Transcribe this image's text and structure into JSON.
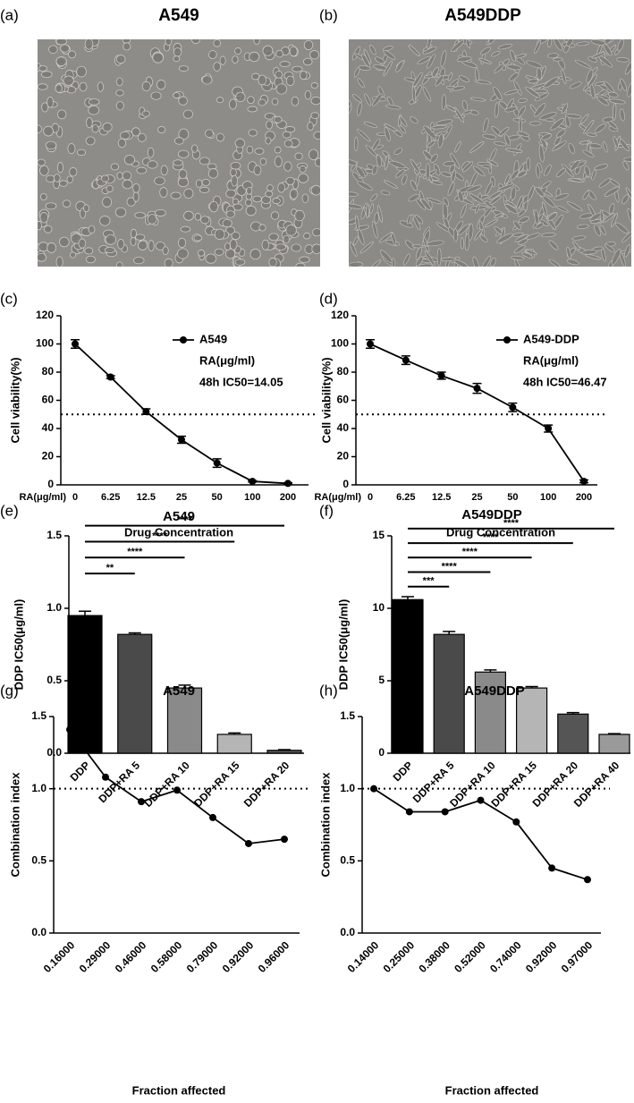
{
  "images": [
    {
      "panel_label": "(a)",
      "title": "A549"
    },
    {
      "panel_label": "(b)",
      "title": "A549DDP"
    }
  ],
  "chart_data": [
    {
      "type": "line",
      "panel_label": "(c)",
      "categories": [
        "0",
        "6.25",
        "12.5",
        "25",
        "50",
        "100",
        "200"
      ],
      "x_prefix_label": "RA(μg/ml)",
      "x_label": "Drug Concentration",
      "y_label": "Cell viability(%)",
      "ylim": [
        0,
        120
      ],
      "yticks": [
        0,
        20,
        40,
        60,
        80,
        100,
        120
      ],
      "reference_line": 50,
      "series": [
        {
          "name": "A549",
          "color": "#000000",
          "values": [
            100,
            76.5,
            52,
            32,
            15.5,
            2.5,
            1
          ],
          "errors": [
            3,
            1,
            2,
            2.5,
            3,
            0.5,
            0.5
          ]
        }
      ],
      "legend_notes": [
        "RA(μg/ml)",
        "48h IC50=14.05"
      ]
    },
    {
      "type": "line",
      "panel_label": "(d)",
      "categories": [
        "0",
        "6.25",
        "12.5",
        "25",
        "50",
        "100",
        "200"
      ],
      "x_prefix_label": "RA(μg/ml)",
      "x_label": "Drug Concentration",
      "y_label": "Cell viability(%)",
      "ylim": [
        0,
        120
      ],
      "yticks": [
        0,
        20,
        40,
        60,
        80,
        100,
        120
      ],
      "reference_line": 50,
      "series": [
        {
          "name": "A549-DDP",
          "color": "#000000",
          "values": [
            100,
            88.5,
            77.5,
            68.5,
            55,
            40,
            2.5
          ],
          "errors": [
            3,
            3,
            2.5,
            3.5,
            3,
            2.5,
            1
          ]
        }
      ],
      "legend_notes": [
        "RA(μg/ml)",
        "48h IC50=46.47"
      ]
    },
    {
      "type": "bar",
      "panel_label": "(e)",
      "title": "A549",
      "categories": [
        "DDP",
        "DDP+RA 5",
        "DDP+RA 10",
        "DDP+RA 15",
        "DDP+RA 20"
      ],
      "values": [
        0.95,
        0.82,
        0.45,
        0.13,
        0.02
      ],
      "errors": [
        0.03,
        0.01,
        0.02,
        0.01,
        0.005
      ],
      "colors": [
        "#000000",
        "#4a4a4a",
        "#8a8a8a",
        "#b5b5b5",
        "#555555"
      ],
      "y_label": "DDP IC50(μg/ml)",
      "ylim": [
        0,
        1.5
      ],
      "yticks": [
        {
          "value": 0,
          "label": "0.0"
        },
        0.5,
        {
          "value": 1,
          "label": "1.0"
        },
        1.5
      ],
      "significance": [
        {
          "from": 0,
          "to": 1,
          "label": "**",
          "y": 1.24
        },
        {
          "from": 0,
          "to": 2,
          "label": "****",
          "y": 1.35
        },
        {
          "from": 0,
          "to": 3,
          "label": "****",
          "y": 1.46
        },
        {
          "from": 0,
          "to": 4,
          "label": "****",
          "y": 1.57
        }
      ]
    },
    {
      "type": "bar",
      "panel_label": "(f)",
      "title": "A549DDP",
      "categories": [
        "DDP",
        "DDP+RA 5",
        "DDP+RA 10",
        "DDP+RA 15",
        "DDP+RA 20",
        "DDP+RA 40"
      ],
      "values": [
        10.6,
        8.2,
        5.6,
        4.5,
        2.7,
        1.3
      ],
      "errors": [
        0.2,
        0.2,
        0.15,
        0.1,
        0.1,
        0.05
      ],
      "colors": [
        "#000000",
        "#4a4a4a",
        "#8a8a8a",
        "#b5b5b5",
        "#555555",
        "#9a9a9a"
      ],
      "y_label": "DDP IC50(μg/ml)",
      "ylim": [
        0,
        15
      ],
      "yticks": [
        0,
        5,
        10,
        15
      ],
      "significance": [
        {
          "from": 0,
          "to": 1,
          "label": "***",
          "y": 11.5
        },
        {
          "from": 0,
          "to": 2,
          "label": "****",
          "y": 12.5
        },
        {
          "from": 0,
          "to": 3,
          "label": "****",
          "y": 13.5
        },
        {
          "from": 0,
          "to": 4,
          "label": "****",
          "y": 14.5
        },
        {
          "from": 0,
          "to": 5,
          "label": "****",
          "y": 15.5
        }
      ]
    },
    {
      "type": "line",
      "panel_label": "(g)",
      "title": "A549",
      "categories": [
        "0.16000",
        "0.29000",
        "0.46000",
        "0.58000",
        "0.79000",
        "0.92000",
        "0.96000"
      ],
      "x_label": "Fraction affected",
      "y_label": "Combination index",
      "ylim": [
        0,
        1.5
      ],
      "yticks": [
        {
          "value": 0,
          "label": "0.0"
        },
        0.5,
        {
          "value": 1,
          "label": "1.0"
        },
        1.5
      ],
      "reference_line": 1,
      "series": [
        {
          "color": "#000000",
          "values": [
            1.41,
            1.08,
            0.91,
            0.99,
            0.8,
            0.62,
            0.65
          ]
        }
      ]
    },
    {
      "type": "line",
      "panel_label": "(h)",
      "title": "A549DDP",
      "categories": [
        "0.14000",
        "0.25000",
        "0.38000",
        "0.52000",
        "0.74000",
        "0.92000",
        "0.97000"
      ],
      "x_label": "Fraction affected",
      "y_label": "Combination index",
      "ylim": [
        0,
        1.5
      ],
      "yticks": [
        {
          "value": 0,
          "label": "0.0"
        },
        0.5,
        {
          "value": 1,
          "label": "1.0"
        },
        1.5
      ],
      "reference_line": 1,
      "series": [
        {
          "color": "#000000",
          "values": [
            1.0,
            0.84,
            0.84,
            0.92,
            0.77,
            0.45,
            0.37
          ]
        }
      ]
    }
  ]
}
